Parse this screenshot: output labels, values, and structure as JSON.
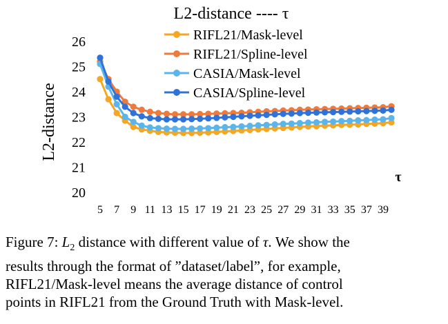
{
  "chart_data": {
    "type": "line",
    "title": "L2-distance ---- τ",
    "xlabel": "τ",
    "ylabel": "L2-distance",
    "ylim": [
      20,
      26
    ],
    "yticks": [
      "20",
      "21",
      "22",
      "23",
      "24",
      "25",
      "26"
    ],
    "x": [
      5,
      6,
      7,
      8,
      9,
      10,
      11,
      12,
      13,
      14,
      15,
      16,
      17,
      18,
      19,
      20,
      21,
      22,
      23,
      24,
      25,
      26,
      27,
      28,
      29,
      30,
      31,
      32,
      33,
      34,
      35,
      36,
      37,
      38,
      39,
      40
    ],
    "xtick_labels": [
      "5",
      "7",
      "9",
      "11",
      "13",
      "15",
      "17",
      "19",
      "21",
      "23",
      "25",
      "27",
      "29",
      "31",
      "33",
      "35",
      "37",
      "39"
    ],
    "grid": false,
    "legend_position": "top-right",
    "series": [
      {
        "name": "RIFL21/Mask-level",
        "color": "#F5A623",
        "values": [
          24.5,
          23.7,
          23.15,
          22.85,
          22.6,
          22.5,
          22.45,
          22.4,
          22.38,
          22.37,
          22.36,
          22.36,
          22.37,
          22.38,
          22.4,
          22.42,
          22.44,
          22.46,
          22.48,
          22.5,
          22.52,
          22.54,
          22.56,
          22.58,
          22.6,
          22.62,
          22.63,
          22.65,
          22.66,
          22.68,
          22.69,
          22.7,
          22.72,
          22.73,
          22.75,
          22.78
        ]
      },
      {
        "name": "RIFL21/Spline-level",
        "color": "#EE7A3C",
        "values": [
          25.2,
          24.5,
          24.0,
          23.6,
          23.4,
          23.28,
          23.2,
          23.15,
          23.12,
          23.1,
          23.1,
          23.1,
          23.11,
          23.12,
          23.13,
          23.14,
          23.15,
          23.16,
          23.18,
          23.2,
          23.22,
          23.23,
          23.25,
          23.26,
          23.28,
          23.29,
          23.3,
          23.31,
          23.32,
          23.33,
          23.34,
          23.35,
          23.36,
          23.37,
          23.38,
          23.42
        ]
      },
      {
        "name": "CASIA/Mask-level",
        "color": "#5BB5EA",
        "values": [
          25.1,
          24.2,
          23.5,
          23.0,
          22.8,
          22.65,
          22.58,
          22.55,
          22.53,
          22.52,
          22.52,
          22.53,
          22.54,
          22.55,
          22.57,
          22.59,
          22.6,
          22.62,
          22.64,
          22.66,
          22.68,
          22.7,
          22.72,
          22.73,
          22.75,
          22.77,
          22.78,
          22.8,
          22.81,
          22.83,
          22.84,
          22.86,
          22.87,
          22.89,
          22.9,
          22.95
        ]
      },
      {
        "name": "CASIA/Spline-level",
        "color": "#2F73D9",
        "values": [
          25.35,
          24.4,
          23.8,
          23.4,
          23.15,
          23.02,
          22.95,
          22.92,
          22.9,
          22.9,
          22.9,
          22.91,
          22.92,
          22.94,
          22.96,
          22.98,
          23.0,
          23.02,
          23.04,
          23.06,
          23.08,
          23.1,
          23.12,
          23.13,
          23.15,
          23.16,
          23.17,
          23.18,
          23.19,
          23.2,
          23.21,
          23.22,
          23.23,
          23.24,
          23.25,
          23.28
        ]
      }
    ]
  },
  "caption": {
    "line1_a": "Figure 7: ",
    "line1_math_base": "L",
    "line1_math_sub": "2",
    "line1_b": " distance with different value of ",
    "line1_tau": "τ",
    "line1_c": ". We show the",
    "line2": "results through the format of ”dataset/label”, for example,",
    "line3": "RIFL21/Mask-level means the average distance of control",
    "line4": "points in RIFL21 from the Ground Truth with Mask-level."
  }
}
